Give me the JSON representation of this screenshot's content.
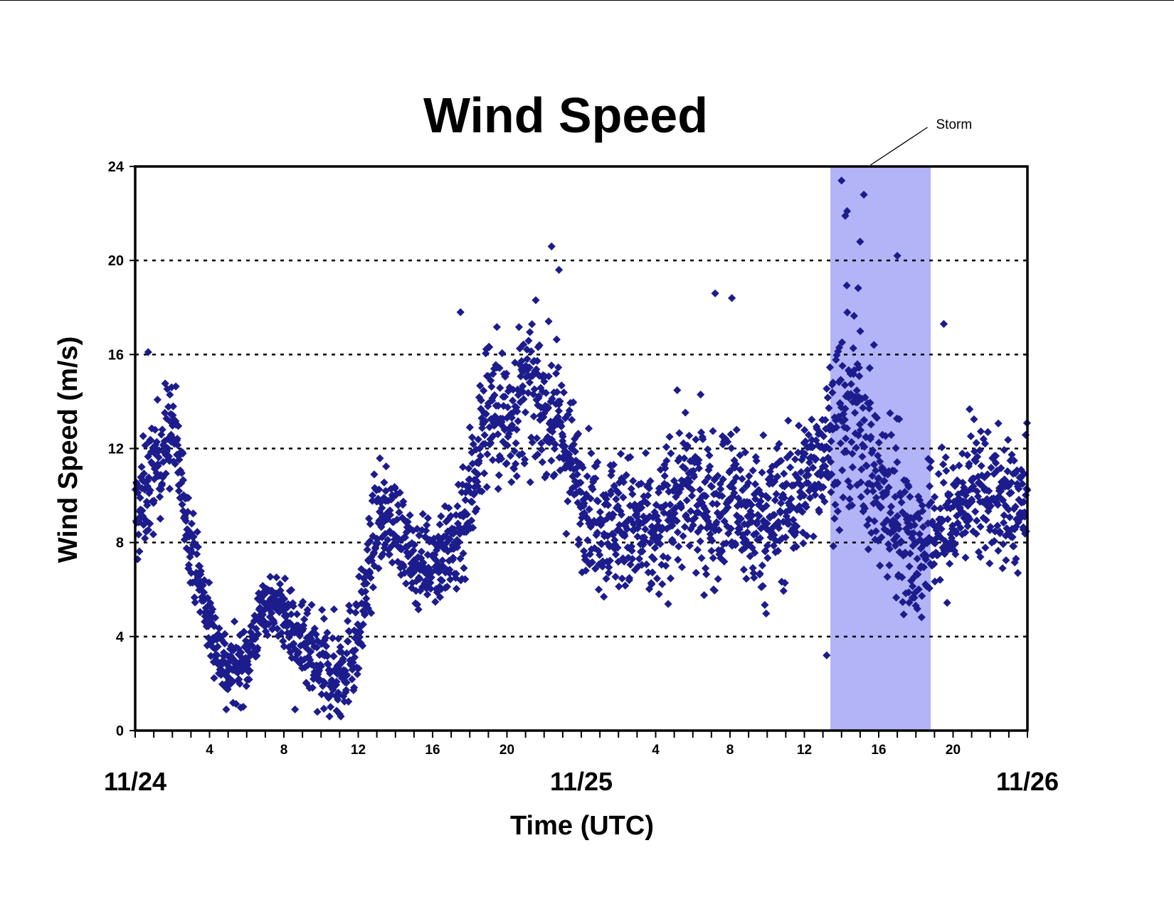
{
  "chart_data": {
    "type": "scatter",
    "title": "Wind Speed",
    "xlabel": "Time (UTC)",
    "ylabel": "Wind Speed (m/s)",
    "x_unit": "hours after 11/24 00 UTC",
    "xlim": [
      0,
      48
    ],
    "ylim": [
      0,
      24
    ],
    "y_ticks": [
      0,
      4,
      8,
      12,
      16,
      20,
      24
    ],
    "y_tick_labels": [
      "0",
      "4",
      "8",
      "12",
      "16",
      "20",
      "24"
    ],
    "hour_ticks": [
      4,
      8,
      12,
      16,
      20,
      28,
      32,
      36,
      40,
      44
    ],
    "hour_tick_labels": [
      "4",
      "8",
      "12",
      "16",
      "20",
      "4",
      "8",
      "12",
      "16",
      "20"
    ],
    "date_labels": [
      {
        "x": 0,
        "label": "11/24"
      },
      {
        "x": 24,
        "label": "11/25"
      },
      {
        "x": 48,
        "label": "11/26"
      }
    ],
    "grid": {
      "horizontal": true,
      "style": "dotted",
      "values": [
        4,
        8,
        12,
        16,
        20
      ]
    },
    "legend": "none",
    "marker": "diamond",
    "point_color": "#1c1c8c",
    "highlight": {
      "label": "Storm",
      "x_start": 37.4,
      "x_end": 42.8,
      "color": "#b3b3f7"
    },
    "series": [
      {
        "envelope_hours": [
          0,
          1,
          2,
          3,
          4,
          5,
          6,
          7,
          8,
          9,
          10,
          11,
          12,
          13,
          14,
          15,
          16,
          17,
          18,
          19,
          20,
          21,
          22,
          23,
          24,
          25,
          26,
          27,
          28,
          29,
          30,
          31,
          32,
          33,
          34,
          35,
          36,
          37,
          38,
          39,
          40,
          41,
          42,
          43,
          44,
          45,
          46,
          47,
          48
        ],
        "envelope_mean": [
          9,
          11,
          13,
          8,
          4.5,
          2.5,
          3,
          5.5,
          5,
          3.5,
          2.5,
          2.5,
          4,
          9,
          9,
          7,
          7.5,
          7.5,
          10,
          14,
          13,
          14.5,
          14,
          12.5,
          10,
          9,
          9,
          8.5,
          8,
          10,
          10,
          9.5,
          10,
          9,
          9,
          9.5,
          10.5,
          12,
          13,
          13.5,
          10,
          9.5,
          7.5,
          8.5,
          9,
          10.5,
          10,
          9.5,
          9.5
        ],
        "envelope_spread": [
          2.2,
          2.2,
          2.2,
          1.5,
          1.5,
          1.4,
          1.4,
          1.2,
          1.3,
          1.6,
          2,
          2,
          2,
          2,
          1.8,
          1.5,
          1.8,
          2.5,
          2.8,
          3,
          3,
          2.8,
          2.5,
          2.8,
          2.5,
          2.6,
          2.8,
          2.8,
          2.6,
          3,
          3,
          3,
          3,
          3,
          3,
          3,
          2.4,
          2.6,
          4,
          4,
          3.5,
          3.5,
          3,
          2.8,
          2.8,
          2.5,
          2.5,
          2.5,
          2.5
        ],
        "point_count": 2600,
        "peaks": [
          {
            "x": 0.7,
            "y": 16.1
          },
          {
            "x": 17.5,
            "y": 17.8
          },
          {
            "x": 22.4,
            "y": 20.6
          },
          {
            "x": 22.8,
            "y": 19.6
          },
          {
            "x": 31.2,
            "y": 18.6
          },
          {
            "x": 32.1,
            "y": 18.4
          },
          {
            "x": 38.0,
            "y": 23.4
          },
          {
            "x": 38.2,
            "y": 21.9
          },
          {
            "x": 38.3,
            "y": 22.1
          },
          {
            "x": 39.2,
            "y": 22.8
          },
          {
            "x": 39.0,
            "y": 20.8
          },
          {
            "x": 41.0,
            "y": 20.2
          },
          {
            "x": 43.5,
            "y": 17.3
          },
          {
            "x": 37.2,
            "y": 3.2
          },
          {
            "x": 11.0,
            "y": 0.7
          },
          {
            "x": 9.8,
            "y": 0.8
          },
          {
            "x": 4.9,
            "y": 0.9
          },
          {
            "x": 8.6,
            "y": 0.9
          }
        ]
      }
    ]
  }
}
